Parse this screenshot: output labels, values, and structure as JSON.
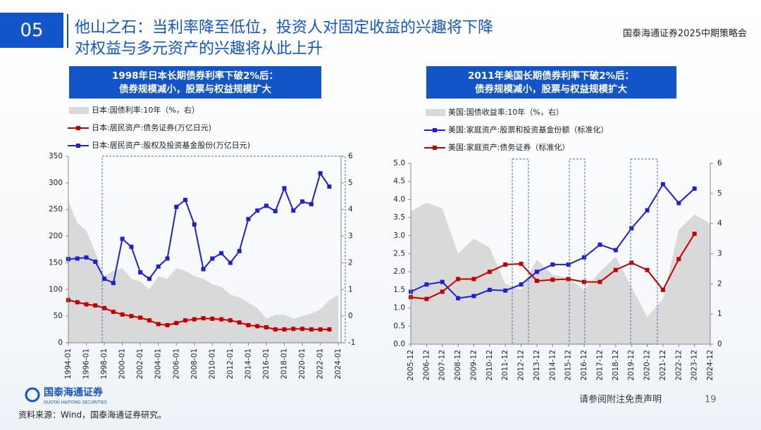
{
  "header": {
    "number": "05",
    "title_lines": [
      "他山之石：当利率降至低位，投资人对固定收益的兴趣将下降",
      "对权益与多元资产的兴趣将从此上升"
    ],
    "event": "国泰海通证券2025中期策略会"
  },
  "footer": {
    "logo": "国泰海通证券",
    "logo_en": "GUOTAI HAITONG SECURITIES",
    "disclaimer": "请参阅附注免责声明",
    "page": "19",
    "source": "资料来源：Wind，国泰海通证券研究。"
  },
  "chart_data": [
    {
      "type": "line",
      "title_lines": [
        "1998年日本长期债券利率下破2%后：",
        "债券规模减小，股票与权益规模扩大"
      ],
      "xlim": [
        1994,
        2024.3
      ],
      "xticks": [
        {
          "value": 1994,
          "label": "1994-01"
        },
        {
          "value": 1996,
          "label": "1996-01"
        },
        {
          "value": 1998,
          "label": "1998-01"
        },
        {
          "value": 2000,
          "label": "2000-01"
        },
        {
          "value": 2002,
          "label": "2002-01"
        },
        {
          "value": 2004,
          "label": "2004-01"
        },
        {
          "value": 2006,
          "label": "2006-01"
        },
        {
          "value": 2008,
          "label": "2008-01"
        },
        {
          "value": 2010,
          "label": "2010-01"
        },
        {
          "value": 2012,
          "label": "2012-01"
        },
        {
          "value": 2014,
          "label": "2014-01"
        },
        {
          "value": 2016,
          "label": "2016-01"
        },
        {
          "value": 2018,
          "label": "2018-01"
        },
        {
          "value": 2020,
          "label": "2020-01"
        },
        {
          "value": 2022,
          "label": "2022-01"
        },
        {
          "value": 2024,
          "label": "2024-01"
        }
      ],
      "ylim": [
        0,
        350
      ],
      "yticks": [
        0,
        50,
        100,
        150,
        200,
        250,
        300,
        350
      ],
      "y2lim": [
        -1,
        6
      ],
      "y2ticks": [
        -1,
        0,
        1,
        2,
        3,
        4,
        5,
        6
      ],
      "series": [
        {
          "name": "日本:国债利率:10年（%，右）",
          "color": "#d9d9d9",
          "style": "area",
          "axis": "y2",
          "x": [
            1994,
            1995,
            1996,
            1997,
            1998,
            1999,
            2000,
            2001,
            2002,
            2003,
            2004,
            2005,
            2006,
            2007,
            2008,
            2009,
            2010,
            2011,
            2012,
            2013,
            2014,
            2015,
            2016,
            2017,
            2018,
            2019,
            2020,
            2021,
            2022,
            2023,
            2024
          ],
          "values": [
            4.3,
            3.5,
            3.2,
            2.4,
            1.5,
            1.7,
            1.8,
            1.4,
            1.3,
            1.0,
            1.5,
            1.4,
            1.8,
            1.7,
            1.5,
            1.4,
            1.2,
            1.1,
            0.8,
            0.7,
            0.5,
            0.3,
            -0.1,
            0.05,
            0.05,
            -0.1,
            0.0,
            0.1,
            0.25,
            0.6,
            0.8
          ]
        },
        {
          "name": "日本:居民资产:债务证券(万亿日元)",
          "color": "#c00000",
          "style": "line",
          "x": [
            1994,
            1995,
            1996,
            1997,
            1998,
            1999,
            2000,
            2001,
            2002,
            2003,
            2004,
            2005,
            2006,
            2007,
            2008,
            2009,
            2010,
            2011,
            2012,
            2013,
            2014,
            2015,
            2016,
            2017,
            2018,
            2019,
            2020,
            2021,
            2022,
            2023
          ],
          "values": [
            80,
            76,
            72,
            70,
            65,
            58,
            53,
            50,
            47,
            42,
            35,
            33,
            37,
            42,
            44,
            46,
            45,
            44,
            42,
            38,
            33,
            31,
            29,
            25,
            25,
            26,
            26,
            25,
            25,
            25
          ]
        },
        {
          "name": "日本:居民资产:股权及投资基金股份(万亿日元)",
          "color": "#1f1fd6",
          "style": "line",
          "x": [
            1994,
            1995,
            1996,
            1997,
            1998,
            1999,
            2000,
            2001,
            2002,
            2003,
            2004,
            2005,
            2006,
            2007,
            2008,
            2009,
            2010,
            2011,
            2012,
            2013,
            2014,
            2015,
            2016,
            2017,
            2018,
            2019,
            2020,
            2021,
            2022,
            2023
          ],
          "values": [
            157,
            158,
            160,
            152,
            120,
            112,
            195,
            180,
            132,
            120,
            143,
            158,
            255,
            268,
            222,
            138,
            158,
            168,
            150,
            172,
            232,
            248,
            257,
            247,
            290,
            248,
            265,
            260,
            318,
            293
          ]
        }
      ]
    },
    {
      "type": "line",
      "title_lines": [
        "2011年美国长期债券利率下破2%后：",
        "债券规模减小，股票与权益规模扩大"
      ],
      "xlim": [
        2005,
        2024
      ],
      "xticks": [
        {
          "value": 2005,
          "label": "2005-12"
        },
        {
          "value": 2006,
          "label": "2006-12"
        },
        {
          "value": 2007,
          "label": "2007-12"
        },
        {
          "value": 2008,
          "label": "2008-12"
        },
        {
          "value": 2009,
          "label": "2009-12"
        },
        {
          "value": 2010,
          "label": "2010-12"
        },
        {
          "value": 2011,
          "label": "2011-12"
        },
        {
          "value": 2012,
          "label": "2012-12"
        },
        {
          "value": 2013,
          "label": "2013-12"
        },
        {
          "value": 2014,
          "label": "2014-12"
        },
        {
          "value": 2015,
          "label": "2015-12"
        },
        {
          "value": 2016,
          "label": "2016-12"
        },
        {
          "value": 2017,
          "label": "2017-12"
        },
        {
          "value": 2018,
          "label": "2018-12"
        },
        {
          "value": 2019,
          "label": "2019-12"
        },
        {
          "value": 2020,
          "label": "2020-12"
        },
        {
          "value": 2021,
          "label": "2021-12"
        },
        {
          "value": 2022,
          "label": "2022-12"
        },
        {
          "value": 2023,
          "label": "2023-12"
        },
        {
          "value": 2024,
          "label": "2024-12"
        }
      ],
      "ylim": [
        0,
        5
      ],
      "yticks": [
        {
          "value": 0,
          "label": "0.0"
        },
        {
          "value": 0.5,
          "label": "0.5"
        },
        {
          "value": 1,
          "label": "1.0"
        },
        {
          "value": 1.5,
          "label": "1.5"
        },
        {
          "value": 2,
          "label": "2.0"
        },
        {
          "value": 2.5,
          "label": "2.5"
        },
        {
          "value": 3,
          "label": "3.0"
        },
        {
          "value": 3.5,
          "label": "3.5"
        },
        {
          "value": 4,
          "label": "4.0"
        },
        {
          "value": 4.5,
          "label": "4.5"
        },
        {
          "value": 5,
          "label": "5.0"
        }
      ],
      "y2lim": [
        0,
        6
      ],
      "y2ticks": [
        0,
        1,
        2,
        3,
        4,
        5,
        6
      ],
      "series": [
        {
          "name": "美国:国债收益率:10年（%，右）",
          "color": "#d9d9d9",
          "style": "area",
          "axis": "y2",
          "x": [
            2005,
            2006,
            2007,
            2008,
            2009,
            2010,
            2011,
            2012,
            2013,
            2014,
            2015,
            2016,
            2017,
            2018,
            2019,
            2020,
            2021,
            2022,
            2023,
            2024
          ],
          "values": [
            4.4,
            4.7,
            4.5,
            3.0,
            3.5,
            3.2,
            2.0,
            1.8,
            2.8,
            2.3,
            2.2,
            1.8,
            2.4,
            2.9,
            1.9,
            0.9,
            1.5,
            3.8,
            4.3,
            4.0
          ]
        },
        {
          "name": "美国:家庭资产:股票和投资基金份额（标准化）",
          "color": "#1f1fd6",
          "style": "line",
          "x": [
            2005,
            2006,
            2007,
            2008,
            2009,
            2010,
            2011,
            2012,
            2013,
            2014,
            2015,
            2016,
            2017,
            2018,
            2019,
            2020,
            2021,
            2022,
            2023
          ],
          "values": [
            1.45,
            1.65,
            1.72,
            1.27,
            1.33,
            1.5,
            1.48,
            1.65,
            2.0,
            2.2,
            2.2,
            2.4,
            2.75,
            2.6,
            3.2,
            3.7,
            4.42,
            3.9,
            4.3
          ]
        },
        {
          "name": "美国:家庭资产:债务证券（标准化）",
          "color": "#c00000",
          "style": "line",
          "x": [
            2005,
            2006,
            2007,
            2008,
            2009,
            2010,
            2011,
            2012,
            2013,
            2014,
            2015,
            2016,
            2017,
            2018,
            2019,
            2020,
            2021,
            2022,
            2023
          ],
          "values": [
            1.3,
            1.25,
            1.45,
            1.8,
            1.8,
            2.0,
            2.2,
            2.22,
            1.75,
            1.78,
            1.8,
            1.72,
            1.72,
            2.05,
            2.25,
            2.05,
            1.5,
            2.35,
            3.05
          ]
        }
      ]
    }
  ]
}
